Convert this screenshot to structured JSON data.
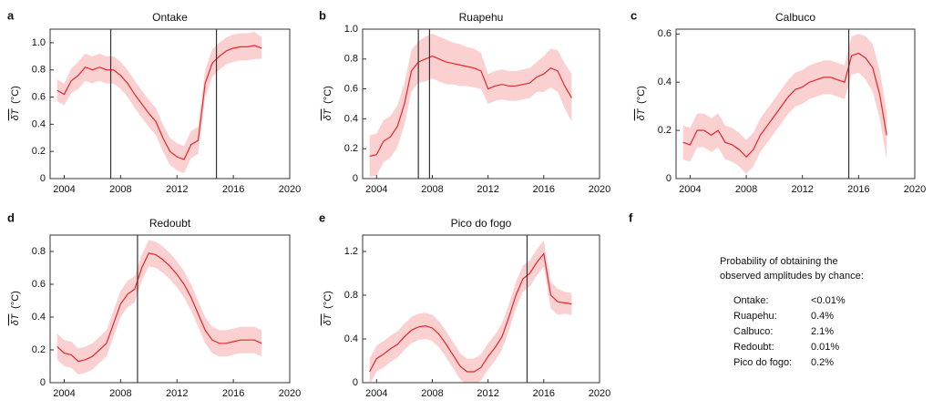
{
  "chart_data": [
    {
      "type": "line",
      "label": "a",
      "title": "Ontake",
      "ylabel": "δT",
      "yunit": "(°C)",
      "x": [
        2003.5,
        2004,
        2004.5,
        2005,
        2005.5,
        2006,
        2006.5,
        2007,
        2007.5,
        2008,
        2008.5,
        2009,
        2009.5,
        2010,
        2010.5,
        2011,
        2011.5,
        2012,
        2012.5,
        2013,
        2013.5,
        2014,
        2014.5,
        2015,
        2015.5,
        2016,
        2016.5,
        2017,
        2017.5,
        2018
      ],
      "series": [
        {
          "color": "#e8262b",
          "band_color": "#fbd0d0",
          "values": [
            0.65,
            0.62,
            0.72,
            0.76,
            0.82,
            0.8,
            0.82,
            0.8,
            0.8,
            0.76,
            0.7,
            0.62,
            0.55,
            0.48,
            0.42,
            0.3,
            0.2,
            0.16,
            0.14,
            0.25,
            0.28,
            0.7,
            0.85,
            0.9,
            0.94,
            0.96,
            0.97,
            0.97,
            0.98,
            0.96
          ],
          "errors": [
            0.08,
            0.08,
            0.09,
            0.1,
            0.1,
            0.1,
            0.1,
            0.1,
            0.1,
            0.1,
            0.1,
            0.1,
            0.1,
            0.1,
            0.1,
            0.1,
            0.1,
            0.1,
            0.1,
            0.1,
            0.1,
            0.1,
            0.1,
            0.1,
            0.1,
            0.1,
            0.1,
            0.1,
            0.1,
            0.08
          ]
        }
      ],
      "vlines": [
        2007.3,
        2014.8
      ],
      "xlim": [
        2003,
        2020
      ],
      "xticks": [
        2004,
        2008,
        2012,
        2016,
        2020
      ],
      "ylim": [
        0,
        1.1
      ],
      "yticks": [
        0,
        0.2,
        0.4,
        0.6,
        0.8,
        {
          "value": 1,
          "label": "1.0"
        }
      ]
    },
    {
      "type": "line",
      "label": "b",
      "title": "Ruapehu",
      "ylabel": "δT",
      "yunit": "(°C)",
      "x": [
        2003.5,
        2004,
        2004.5,
        2005,
        2005.5,
        2006,
        2006.5,
        2007,
        2007.5,
        2008,
        2008.5,
        2009,
        2009.5,
        2010,
        2010.5,
        2011,
        2011.5,
        2012,
        2012.5,
        2013,
        2013.5,
        2014,
        2014.5,
        2015,
        2015.5,
        2016,
        2016.5,
        2017,
        2017.5,
        2018
      ],
      "series": [
        {
          "color": "#e8262b",
          "band_color": "#fbd0d0",
          "values": [
            0.15,
            0.16,
            0.25,
            0.28,
            0.35,
            0.5,
            0.72,
            0.78,
            0.8,
            0.82,
            0.8,
            0.78,
            0.77,
            0.76,
            0.75,
            0.74,
            0.72,
            0.6,
            0.62,
            0.63,
            0.62,
            0.62,
            0.63,
            0.64,
            0.68,
            0.7,
            0.74,
            0.72,
            0.62,
            0.54
          ],
          "errors": [
            0.14,
            0.14,
            0.14,
            0.14,
            0.14,
            0.14,
            0.14,
            0.14,
            0.15,
            0.15,
            0.15,
            0.15,
            0.14,
            0.14,
            0.13,
            0.13,
            0.12,
            0.1,
            0.1,
            0.1,
            0.1,
            0.1,
            0.1,
            0.1,
            0.1,
            0.12,
            0.13,
            0.14,
            0.15,
            0.16
          ]
        }
      ],
      "vlines": [
        2007.0,
        2007.8
      ],
      "xlim": [
        2003,
        2020
      ],
      "xticks": [
        2004,
        2008,
        2012,
        2016,
        2020
      ],
      "ylim": [
        0,
        1
      ],
      "yticks": [
        0,
        0.2,
        0.4,
        0.6,
        0.8,
        {
          "value": 1,
          "label": "1.0"
        }
      ]
    },
    {
      "type": "line",
      "label": "c",
      "title": "Calbuco",
      "ylabel": "δT",
      "yunit": "(°C)",
      "x": [
        2003.5,
        2004,
        2004.5,
        2005,
        2005.5,
        2006,
        2006.5,
        2007,
        2007.5,
        2008,
        2008.5,
        2009,
        2009.5,
        2010,
        2010.5,
        2011,
        2011.5,
        2012,
        2012.5,
        2013,
        2013.5,
        2014,
        2014.5,
        2015,
        2015.5,
        2016,
        2016.5,
        2017,
        2017.5,
        2018
      ],
      "series": [
        {
          "color": "#e8262b",
          "band_color": "#fbd0d0",
          "values": [
            0.15,
            0.14,
            0.2,
            0.2,
            0.18,
            0.2,
            0.15,
            0.14,
            0.12,
            0.09,
            0.12,
            0.18,
            0.22,
            0.26,
            0.3,
            0.34,
            0.37,
            0.38,
            0.4,
            0.41,
            0.42,
            0.42,
            0.41,
            0.4,
            0.51,
            0.52,
            0.5,
            0.46,
            0.35,
            0.18
          ],
          "errors": [
            0.07,
            0.07,
            0.07,
            0.07,
            0.07,
            0.07,
            0.07,
            0.07,
            0.07,
            0.07,
            0.07,
            0.07,
            0.07,
            0.07,
            0.07,
            0.07,
            0.07,
            0.07,
            0.07,
            0.07,
            0.07,
            0.07,
            0.07,
            0.07,
            0.08,
            0.08,
            0.09,
            0.1,
            0.1,
            0.1
          ]
        }
      ],
      "vlines": [
        2015.3
      ],
      "xlim": [
        2003,
        2020
      ],
      "xticks": [
        2004,
        2008,
        2012,
        2016,
        2020
      ],
      "ylim": [
        0,
        0.62
      ],
      "yticks": [
        0,
        0.2,
        0.4,
        0.6
      ]
    },
    {
      "type": "line",
      "label": "d",
      "title": "Redoubt",
      "ylabel": "δT",
      "yunit": "(°C)",
      "x": [
        2003.5,
        2004,
        2004.5,
        2005,
        2005.5,
        2006,
        2006.5,
        2007,
        2007.5,
        2008,
        2008.5,
        2009,
        2009.5,
        2010,
        2010.5,
        2011,
        2011.5,
        2012,
        2012.5,
        2013,
        2013.5,
        2014,
        2014.5,
        2015,
        2015.5,
        2016,
        2016.5,
        2017,
        2017.5,
        2018
      ],
      "series": [
        {
          "color": "#e8262b",
          "band_color": "#fbd0d0",
          "values": [
            0.22,
            0.18,
            0.17,
            0.13,
            0.14,
            0.16,
            0.2,
            0.24,
            0.36,
            0.48,
            0.54,
            0.57,
            0.7,
            0.79,
            0.78,
            0.75,
            0.71,
            0.66,
            0.6,
            0.52,
            0.42,
            0.32,
            0.26,
            0.24,
            0.24,
            0.25,
            0.26,
            0.26,
            0.26,
            0.24
          ],
          "errors": [
            0.08,
            0.08,
            0.08,
            0.08,
            0.08,
            0.08,
            0.08,
            0.08,
            0.08,
            0.08,
            0.08,
            0.08,
            0.08,
            0.08,
            0.08,
            0.08,
            0.08,
            0.08,
            0.08,
            0.08,
            0.08,
            0.08,
            0.08,
            0.08,
            0.08,
            0.08,
            0.08,
            0.08,
            0.08,
            0.08
          ]
        }
      ],
      "vlines": [
        2009.2
      ],
      "xlim": [
        2003,
        2020
      ],
      "xticks": [
        2004,
        2008,
        2012,
        2016,
        2020
      ],
      "ylim": [
        0,
        0.9
      ],
      "yticks": [
        0,
        0.2,
        0.4,
        0.6,
        0.8
      ]
    },
    {
      "type": "line",
      "label": "e",
      "title": "Pico do fogo",
      "ylabel": "δT",
      "yunit": "(°C)",
      "x": [
        2003.5,
        2004,
        2004.5,
        2005,
        2005.5,
        2006,
        2006.5,
        2007,
        2007.5,
        2008,
        2008.5,
        2009,
        2009.5,
        2010,
        2010.5,
        2011,
        2011.5,
        2012,
        2012.5,
        2013,
        2013.5,
        2014,
        2014.5,
        2015,
        2015.5,
        2016,
        2016.5,
        2017,
        2017.5,
        2018
      ],
      "series": [
        {
          "color": "#e8262b",
          "band_color": "#fbd0d0",
          "values": [
            0.1,
            0.22,
            0.26,
            0.31,
            0.35,
            0.42,
            0.48,
            0.51,
            0.52,
            0.5,
            0.44,
            0.35,
            0.25,
            0.15,
            0.1,
            0.1,
            0.14,
            0.24,
            0.32,
            0.42,
            0.6,
            0.8,
            0.95,
            1.0,
            1.1,
            1.18,
            0.8,
            0.74,
            0.73,
            0.72
          ],
          "errors": [
            0.12,
            0.12,
            0.12,
            0.12,
            0.12,
            0.12,
            0.12,
            0.12,
            0.12,
            0.12,
            0.12,
            0.12,
            0.12,
            0.12,
            0.12,
            0.12,
            0.12,
            0.12,
            0.12,
            0.12,
            0.12,
            0.12,
            0.12,
            0.12,
            0.12,
            0.12,
            0.12,
            0.12,
            0.1,
            0.1
          ]
        }
      ],
      "vlines": [
        2014.8
      ],
      "xlim": [
        2003,
        2020
      ],
      "xticks": [
        2004,
        2008,
        2012,
        2016,
        2020
      ],
      "ylim": [
        0,
        1.35
      ],
      "yticks": [
        0,
        0.4,
        0.8,
        1.2
      ]
    }
  ],
  "panel_f": {
    "label": "f",
    "heading": [
      "Probability of obtaining the",
      "observed amplitudes by chance:"
    ],
    "rows": [
      [
        "Ontake:",
        "<0.01%"
      ],
      [
        "Ruapehu:",
        "0.4%"
      ],
      [
        "Calbuco:",
        "2.1%"
      ],
      [
        "Redoubt:",
        "0.01%"
      ],
      [
        "Pico do fogo:",
        "0.2%"
      ]
    ]
  }
}
